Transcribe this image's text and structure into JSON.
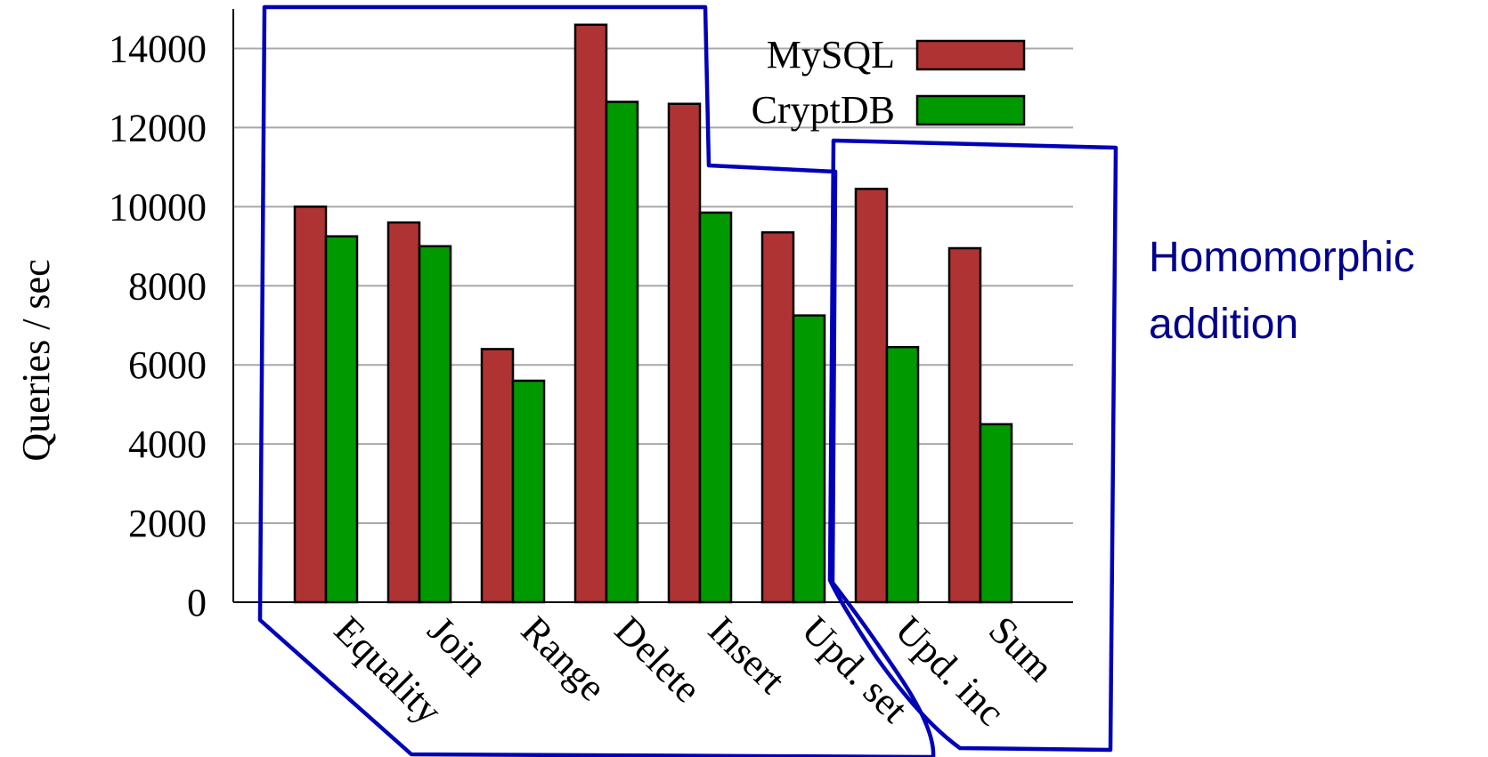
{
  "chart_data": {
    "type": "bar",
    "ylabel": "Queries / sec",
    "xlabel": "",
    "ylim": [
      0,
      15000
    ],
    "yticks": [
      0,
      2000,
      4000,
      6000,
      8000,
      10000,
      12000,
      14000
    ],
    "grid": true,
    "legend_position": "top-right",
    "categories": [
      "Equality",
      "Join",
      "Range",
      "Delete",
      "Insert",
      "Upd. set",
      "Upd. inc",
      "Sum"
    ],
    "series": [
      {
        "name": "MySQL",
        "color": "#b03333",
        "values": [
          10000,
          9600,
          6400,
          14600,
          12600,
          9350,
          10450,
          8950
        ]
      },
      {
        "name": "CryptDB",
        "color": "#009900",
        "values": [
          9250,
          9000,
          5600,
          12650,
          9850,
          7250,
          6450,
          4500
        ]
      }
    ],
    "annotations": [
      {
        "text_lines": [
          "Homomorphic",
          "addition"
        ],
        "color": "#00008b"
      }
    ]
  }
}
